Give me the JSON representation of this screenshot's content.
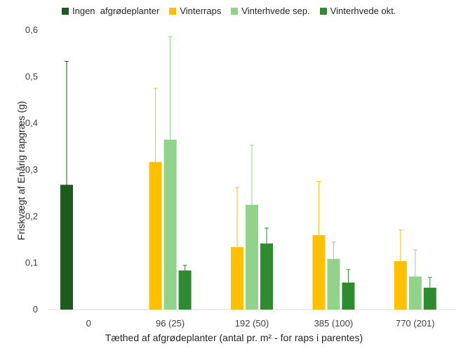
{
  "chart_data": {
    "type": "bar",
    "categories": [
      "0",
      "96 (25)",
      "192 (50)",
      "385 (100)",
      "770 (201)"
    ],
    "series": [
      {
        "name": "Ingen  afgrødeplanter",
        "color": "#1e5a1e",
        "values": [
          0.268,
          null,
          null,
          null,
          null
        ],
        "errors": [
          0.265,
          null,
          null,
          null,
          null
        ]
      },
      {
        "name": "Vinterraps",
        "color": "#ffc000",
        "values": [
          null,
          0.317,
          0.134,
          0.16,
          0.104
        ],
        "errors": [
          null,
          0.158,
          0.128,
          0.115,
          0.067
        ]
      },
      {
        "name": "Vinterhvede sep.",
        "color": "#92d38b",
        "values": [
          null,
          0.365,
          0.225,
          0.109,
          0.071
        ],
        "errors": [
          null,
          0.221,
          0.128,
          0.036,
          0.057
        ]
      },
      {
        "name": "Vinterhvede okt.",
        "color": "#2e8b2e",
        "values": [
          null,
          0.084,
          0.142,
          0.058,
          0.047
        ],
        "errors": [
          null,
          0.011,
          0.033,
          0.028,
          0.022
        ]
      }
    ],
    "title": "",
    "xlabel": "Tæthed af afgrødeplanter (antal pr. m² - for raps i parentes)",
    "ylabel": "Friskvægt af Enårig rapgræs (g)",
    "ylim": [
      0,
      0.6
    ],
    "yticks": [
      0,
      0.1,
      0.2,
      0.3,
      0.4,
      0.5,
      0.6
    ],
    "ytick_labels": [
      "0",
      "0,1",
      "0,2",
      "0,3",
      "0,4",
      "0,5",
      "0,6"
    ],
    "grid": false,
    "legend": "top"
  }
}
